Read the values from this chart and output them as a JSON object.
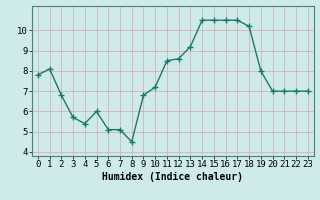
{
  "x": [
    0,
    1,
    2,
    3,
    4,
    5,
    6,
    7,
    8,
    9,
    10,
    11,
    12,
    13,
    14,
    15,
    16,
    17,
    18,
    19,
    20,
    21,
    22,
    23
  ],
  "y": [
    7.8,
    8.1,
    6.8,
    5.7,
    5.4,
    6.0,
    5.1,
    5.1,
    4.5,
    6.8,
    7.2,
    8.5,
    8.6,
    9.2,
    10.5,
    10.5,
    10.5,
    10.5,
    10.2,
    8.0,
    7.0,
    7.0,
    7.0,
    7.0
  ],
  "line_color": "#1a7a6a",
  "marker": "+",
  "marker_color": "#1a7a6a",
  "bg_color": "#ceeaea",
  "grid_color": "#b8c8c8",
  "grid_color_red": "#d4a8a8",
  "xlabel": "Humidex (Indice chaleur)",
  "xlim": [
    -0.5,
    23.5
  ],
  "ylim": [
    3.8,
    11.2
  ],
  "yticks": [
    4,
    5,
    6,
    7,
    8,
    9,
    10
  ],
  "xticks": [
    0,
    1,
    2,
    3,
    4,
    5,
    6,
    7,
    8,
    9,
    10,
    11,
    12,
    13,
    14,
    15,
    16,
    17,
    18,
    19,
    20,
    21,
    22,
    23
  ],
  "xlabel_fontsize": 7,
  "tick_fontsize": 6.5,
  "line_width": 1.0,
  "marker_size": 4
}
